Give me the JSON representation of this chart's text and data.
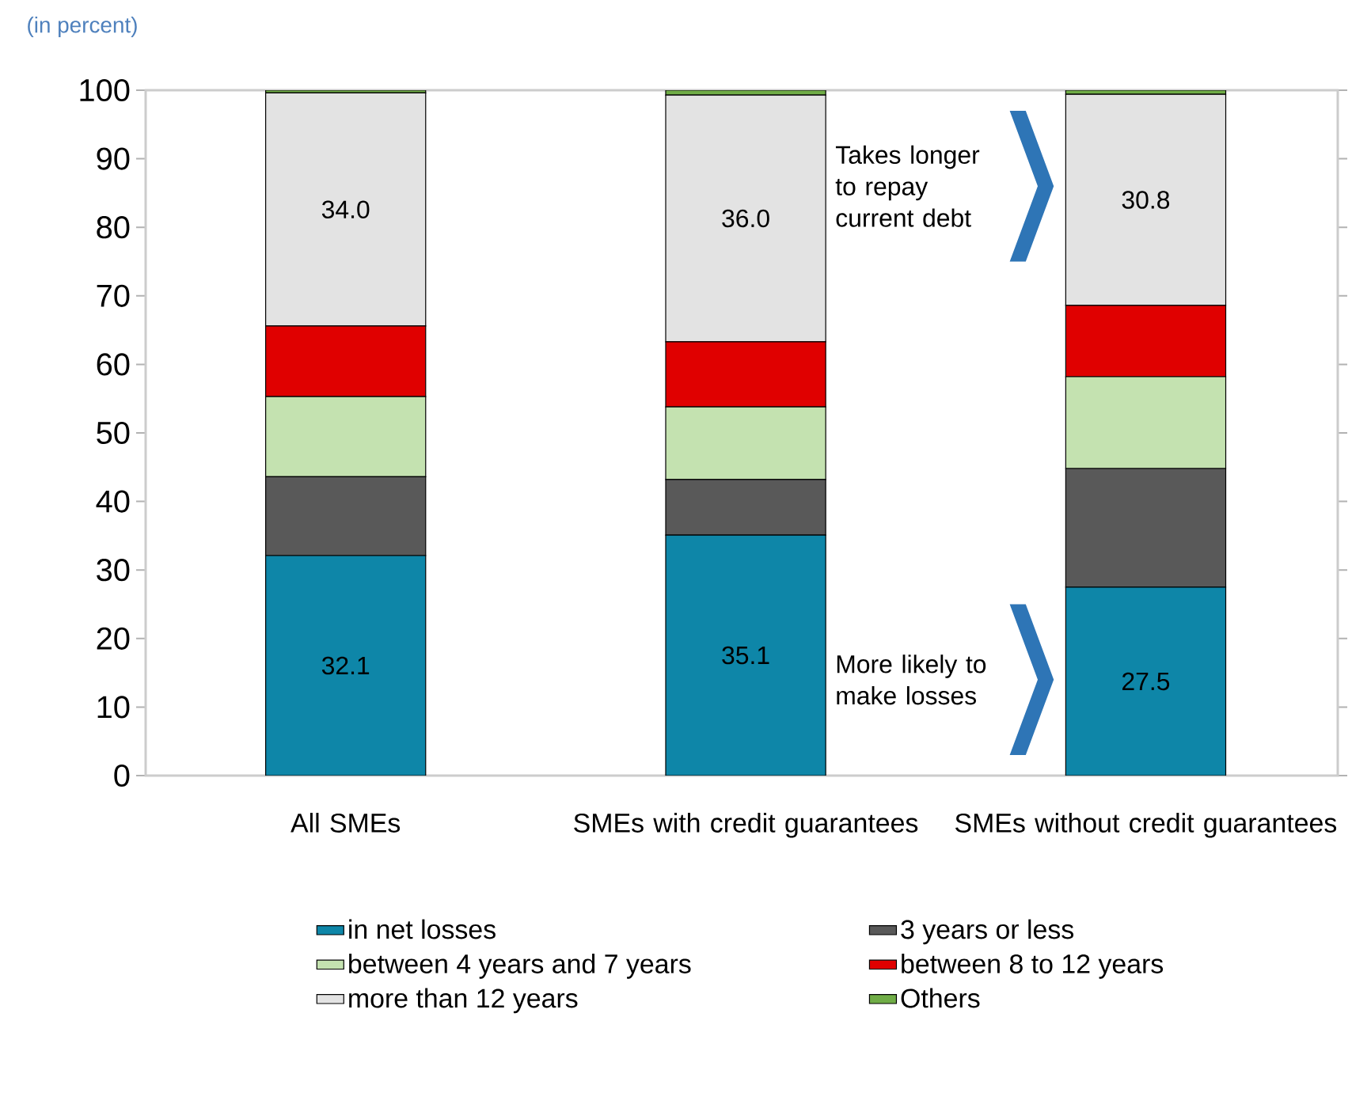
{
  "chart_data": {
    "type": "bar",
    "stacked": true,
    "ylabel": "(in percent)",
    "categories": [
      "All SMEs",
      "SMEs with credit guarantees",
      "SMEs without credit guarantees"
    ],
    "series": [
      {
        "name": "in net losses",
        "color": "#0e86a8",
        "values": [
          32.1,
          35.1,
          27.5
        ],
        "value_labels": [
          "32.1",
          "35.1",
          "27.5"
        ]
      },
      {
        "name": "3 years or less",
        "color": "#595959",
        "values": [
          11.5,
          8.1,
          17.3
        ]
      },
      {
        "name": "between 4 years and 7 years",
        "color": "#c4e2b0",
        "values": [
          11.7,
          10.6,
          13.4
        ]
      },
      {
        "name": "between 8 to 12 years",
        "color": "#e00000",
        "values": [
          10.3,
          9.5,
          10.4
        ]
      },
      {
        "name": "more than 12 years",
        "color": "#e3e3e3",
        "values": [
          34.0,
          36.0,
          30.8
        ],
        "value_labels": [
          "34.0",
          "36.0",
          "30.8"
        ]
      },
      {
        "name": "Others",
        "color": "#70ad47",
        "values": [
          0.4,
          0.7,
          0.6
        ]
      }
    ],
    "ylim": [
      0,
      100
    ],
    "yticks": [
      0,
      10,
      20,
      30,
      40,
      50,
      60,
      70,
      80,
      90,
      100
    ],
    "legend": "bottom",
    "annotations": [
      "Takes longer to repay current debt",
      "More likely to make losses"
    ]
  }
}
